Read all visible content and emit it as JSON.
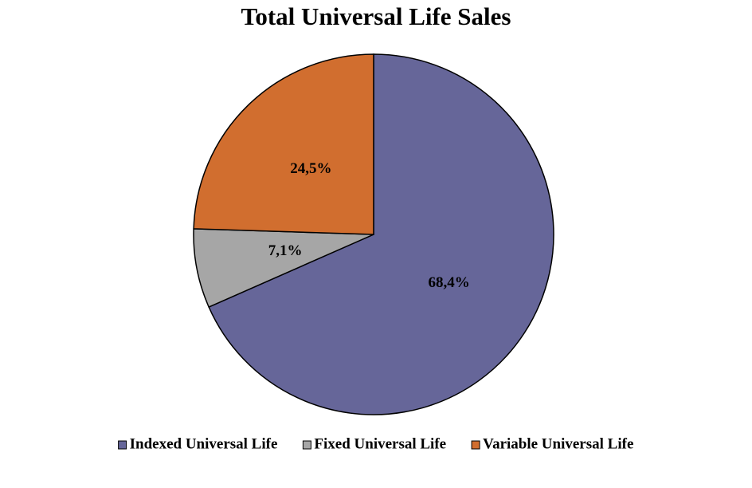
{
  "chart_data": {
    "type": "pie",
    "title": "Total Universal Life Sales",
    "categories": [
      "Indexed Universal Life",
      "Fixed Universal Life",
      "Variable Universal Life"
    ],
    "values": [
      68.4,
      7.1,
      24.5
    ],
    "value_labels": [
      "68,4%",
      "7,1%",
      "24,5%"
    ],
    "colors": [
      "#666699",
      "#a6a6a6",
      "#d16e2f"
    ],
    "legend": "bottom"
  }
}
